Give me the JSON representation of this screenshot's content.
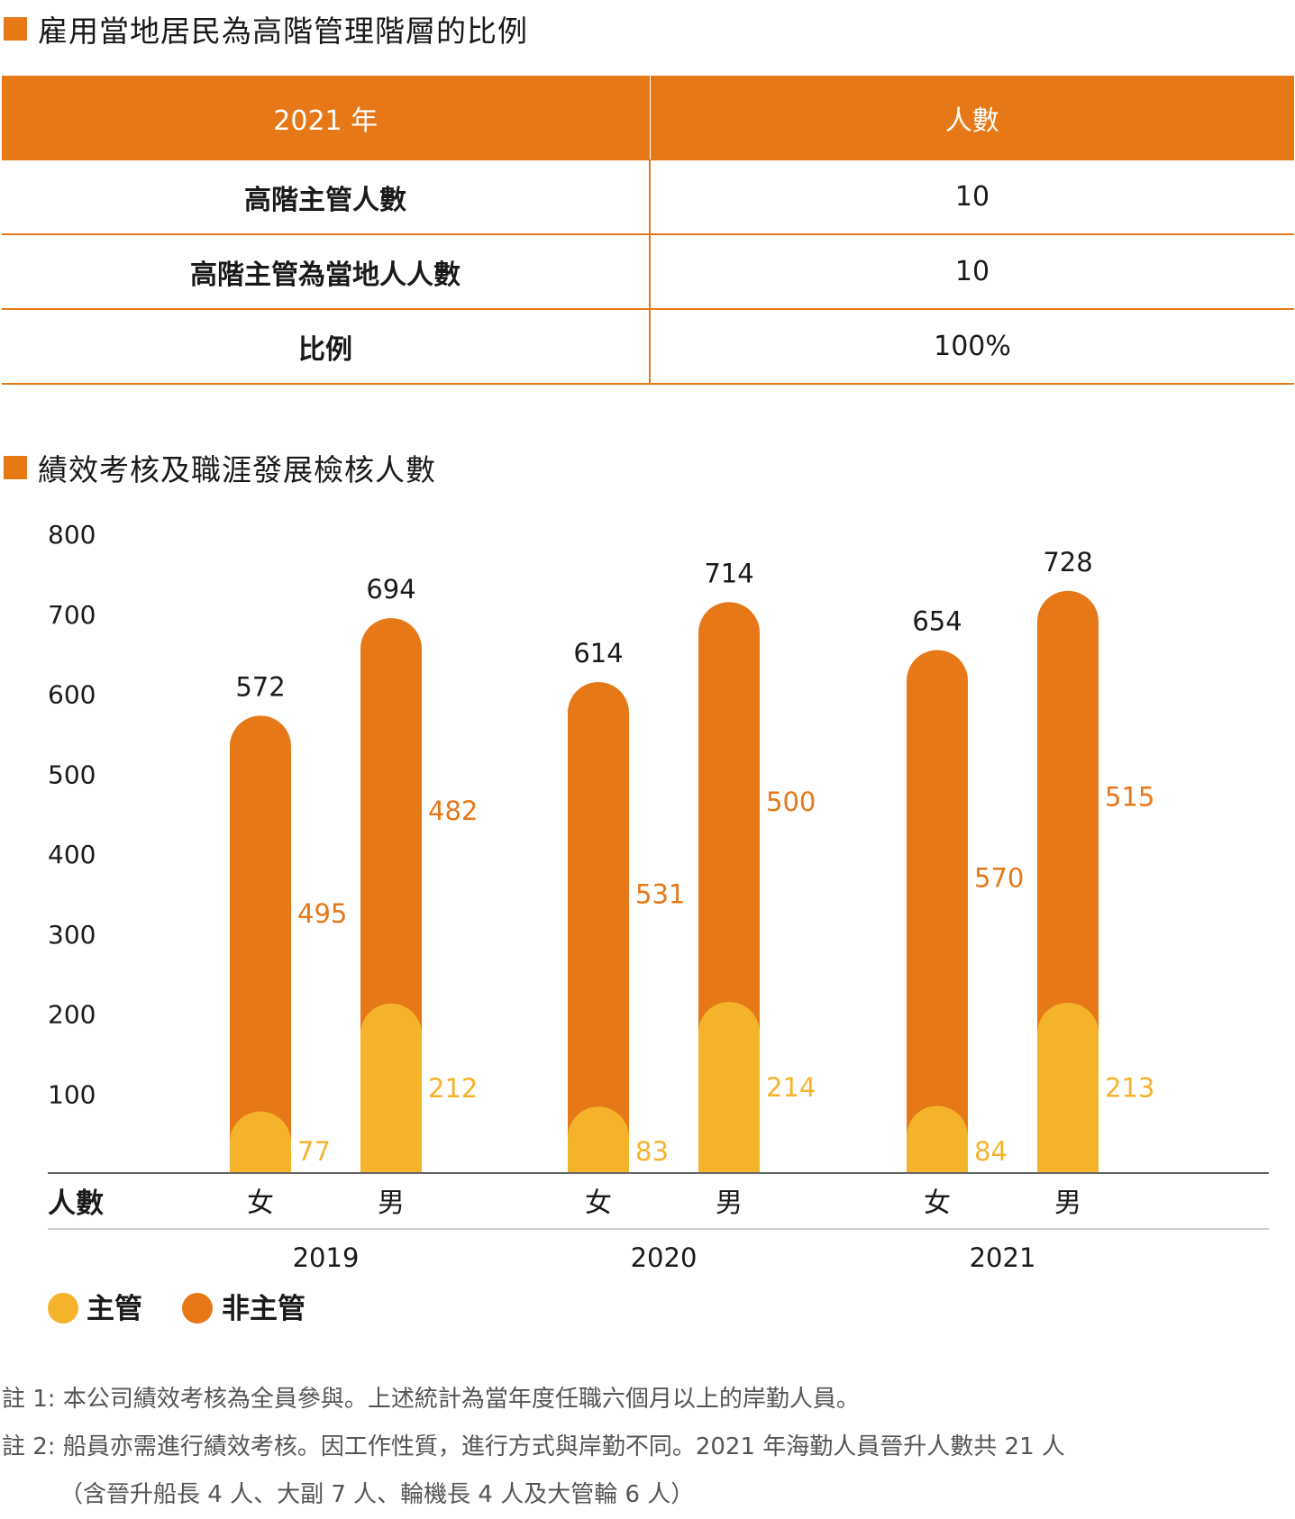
{
  "section1": {
    "title": "雇用當地居民為高階管理階層的比例"
  },
  "table": {
    "headers": [
      "2021 年",
      "人數"
    ],
    "rows": [
      {
        "label": "高階主管人數",
        "value": "10"
      },
      {
        "label": "高階主管為當地人人數",
        "value": "10"
      },
      {
        "label": "比例",
        "value": "100%"
      }
    ]
  },
  "section2": {
    "title": "績效考核及職涯發展檢核人數"
  },
  "colors": {
    "accent": "#e67817",
    "supervisor": "#f5b32b",
    "non_supervisor": "#e67817"
  },
  "chart_data": {
    "type": "bar",
    "stacked": true,
    "ylim": [
      0,
      800
    ],
    "yticks": [
      100,
      200,
      300,
      400,
      500,
      600,
      700,
      800
    ],
    "row_label": "人數",
    "groups": [
      "2019",
      "2020",
      "2021"
    ],
    "categories": [
      "女",
      "男"
    ],
    "series": [
      {
        "name": "主管",
        "color": "#f5b32b",
        "values": [
          [
            77,
            212
          ],
          [
            83,
            214
          ],
          [
            84,
            213
          ]
        ]
      },
      {
        "name": "非主管",
        "color": "#e67817",
        "values": [
          [
            495,
            482
          ],
          [
            531,
            500
          ],
          [
            570,
            515
          ]
        ]
      }
    ],
    "totals": [
      [
        572,
        694
      ],
      [
        614,
        714
      ],
      [
        654,
        728
      ]
    ],
    "legend_position": "bottom-left"
  },
  "notes": [
    "註 1: 本公司績效考核為全員參與。上述統計為當年度任職六個月以上的岸勤人員。",
    "註 2: 船員亦需進行績效考核。因工作性質，進行方式與岸勤不同。2021 年海勤人員晉升人數共 21 人",
    "（含晉升船長 4 人、大副 7 人、輪機長 4 人及大管輪 6 人）"
  ]
}
